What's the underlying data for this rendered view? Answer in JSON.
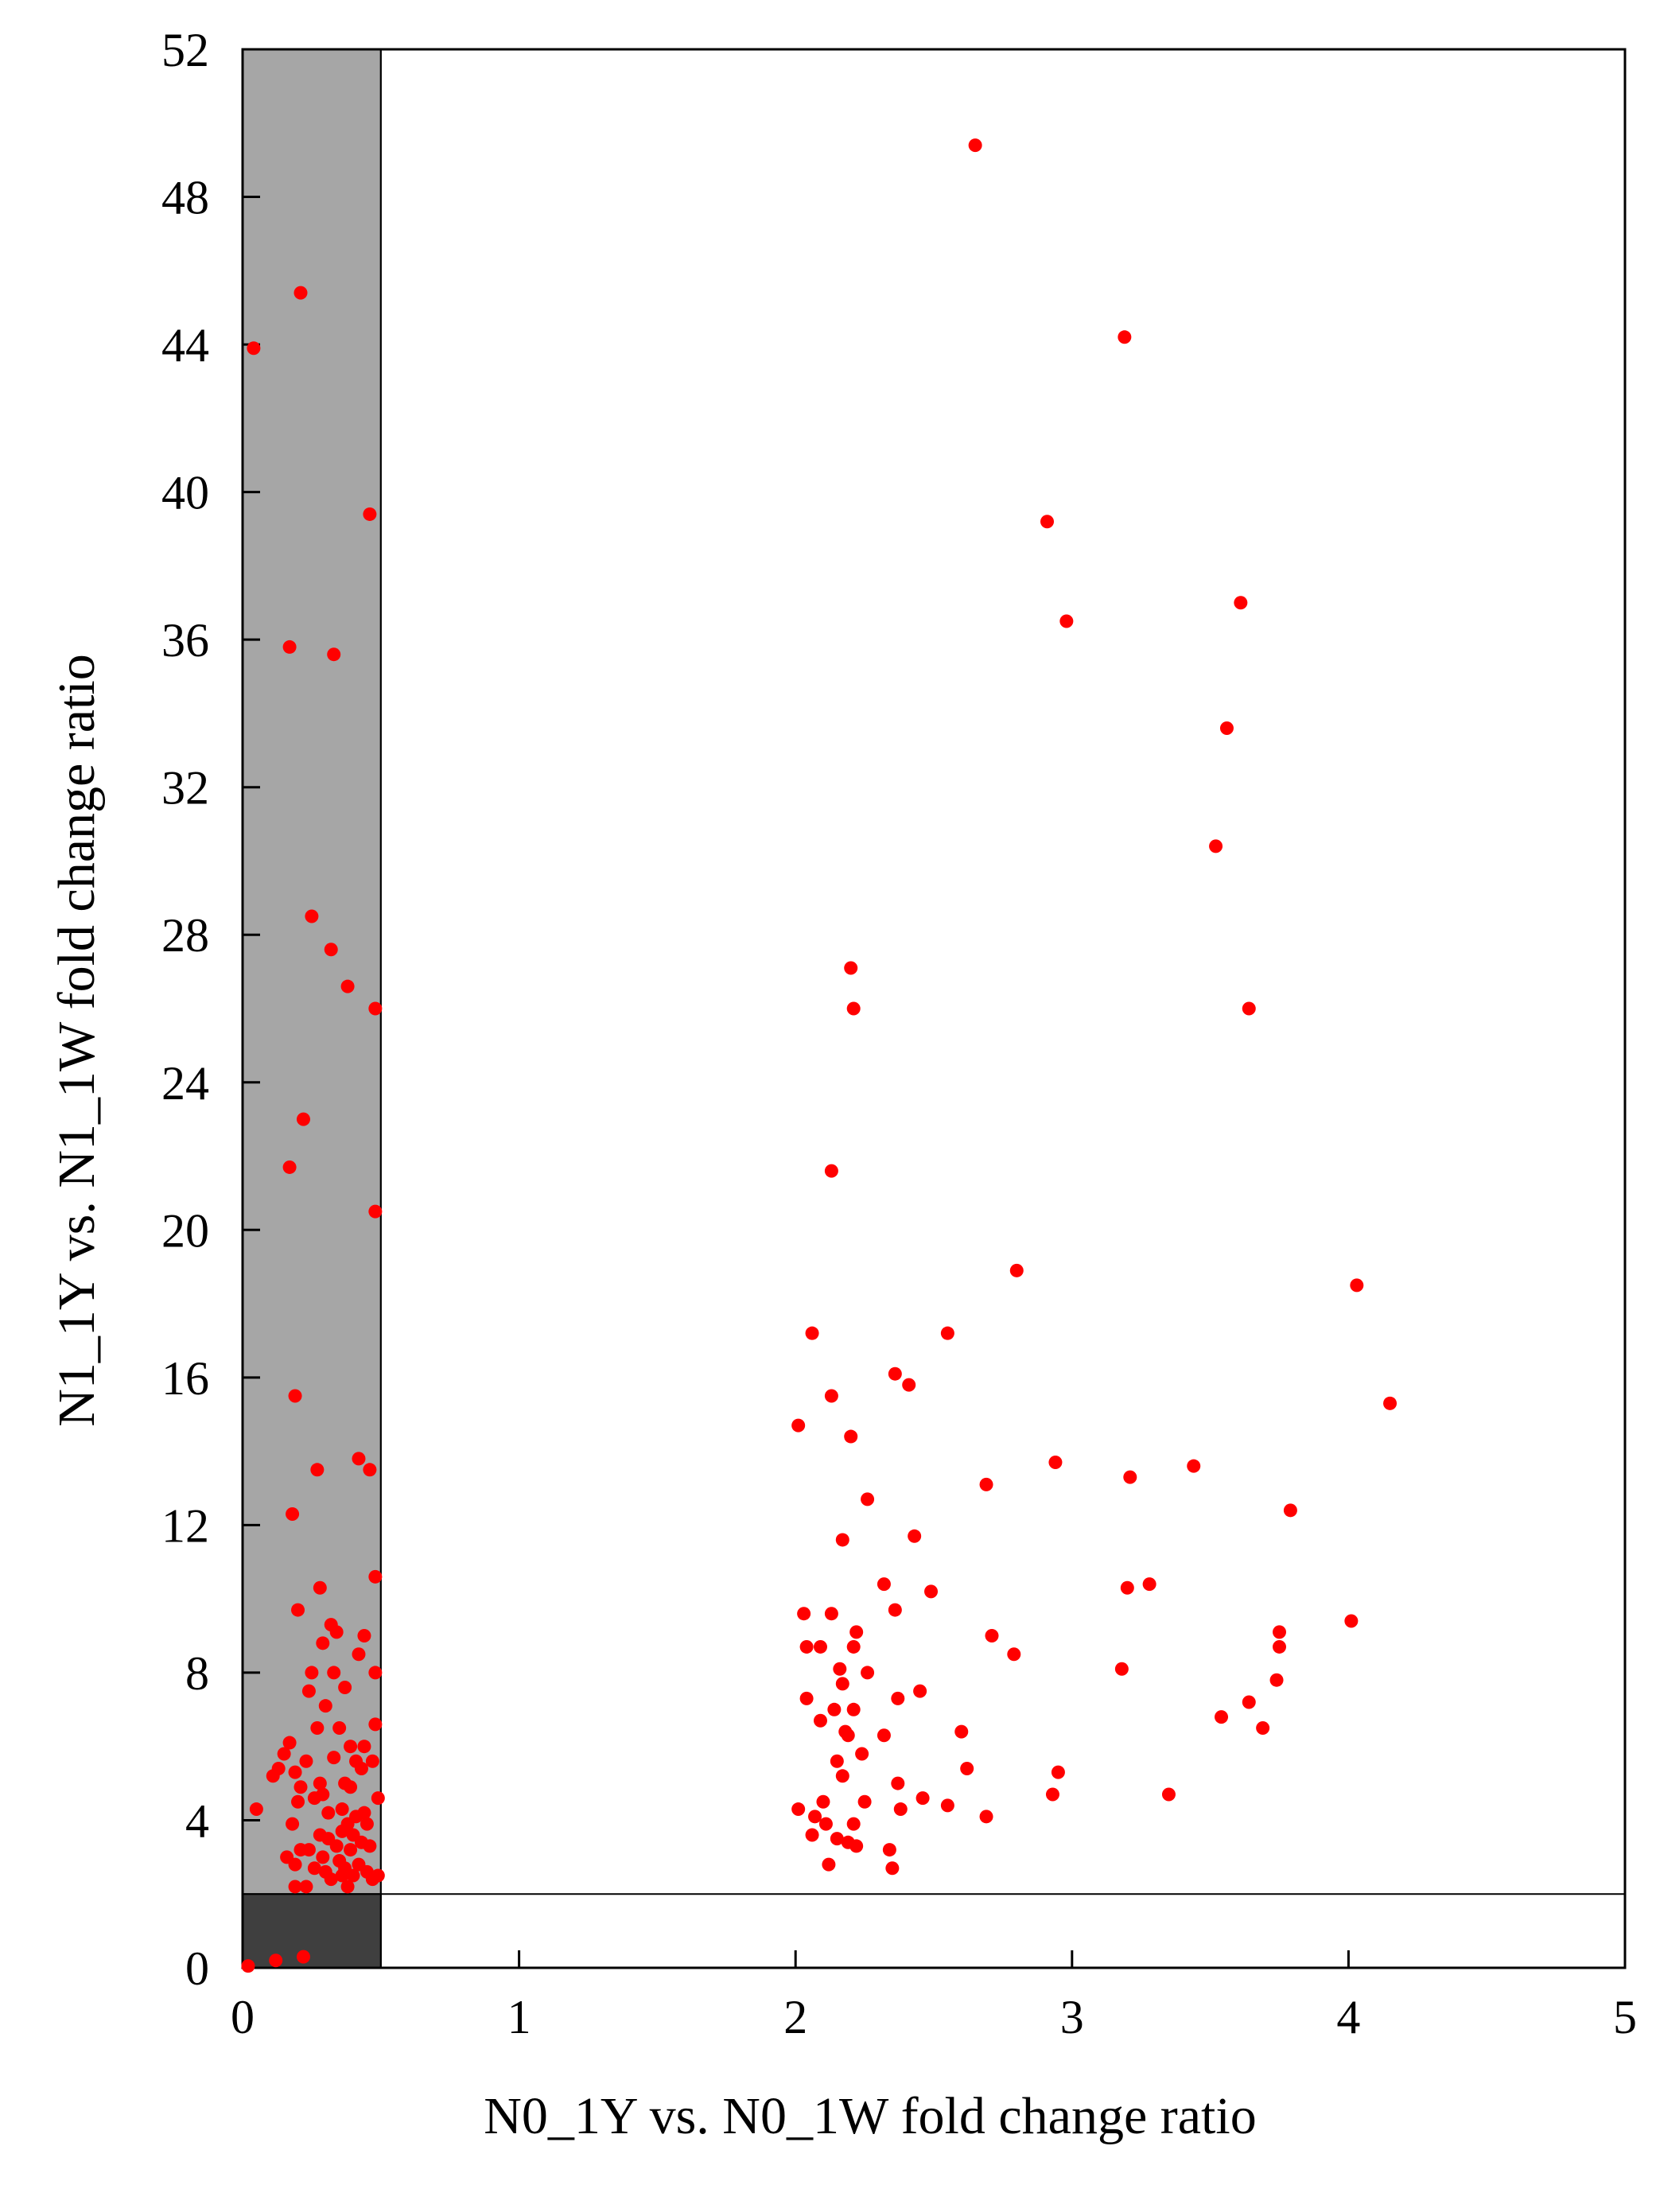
{
  "chart_data": {
    "type": "scatter",
    "title": "",
    "xlabel": "N0_1Y vs. N0_1W  fold change ratio",
    "ylabel": "N1_1Y vs. N1_1W fold change ratio",
    "xlim": [
      0,
      5
    ],
    "ylim": [
      0,
      52
    ],
    "x_ticks": [
      0,
      1,
      2,
      3,
      4,
      5
    ],
    "y_ticks": [
      0,
      4,
      8,
      12,
      16,
      20,
      24,
      28,
      32,
      36,
      40,
      44,
      48,
      52
    ],
    "x_tick_labels": [
      "0",
      "1",
      "2",
      "3",
      "4",
      "5"
    ],
    "y_tick_labels": [
      "0",
      "4",
      "8",
      "12",
      "16",
      "20",
      "24",
      "28",
      "32",
      "36",
      "40",
      "44",
      "48",
      "52"
    ],
    "grid": false,
    "legend": "none",
    "colors": {
      "points": "#ff0000",
      "region_light": "#a6a6a6",
      "region_dark": "#3f3f3f",
      "axis": "#000000"
    },
    "shaded_regions": [
      {
        "name": "x below 0.5",
        "x": [
          0,
          0.5
        ],
        "y": [
          0,
          52
        ],
        "color": "#a6a6a6"
      },
      {
        "name": "x below 0.5 and y below 2",
        "x": [
          0,
          0.5
        ],
        "y": [
          0,
          2
        ],
        "color": "#3f3f3f"
      }
    ],
    "reference_lines": [
      {
        "orientation": "horizontal",
        "value": 2
      },
      {
        "orientation": "vertical",
        "value": 0.5
      }
    ],
    "series": [
      {
        "points": [
          [
            0.02,
            0.05
          ],
          [
            0.04,
            43.9
          ],
          [
            0.05,
            4.3
          ],
          [
            0.11,
            5.2
          ],
          [
            0.12,
            0.2
          ],
          [
            0.13,
            5.4
          ],
          [
            0.15,
            5.8
          ],
          [
            0.16,
            3.0
          ],
          [
            0.17,
            21.7
          ],
          [
            0.17,
            35.8
          ],
          [
            0.17,
            6.1
          ],
          [
            0.18,
            3.9
          ],
          [
            0.18,
            12.3
          ],
          [
            0.19,
            2.8
          ],
          [
            0.19,
            5.3
          ],
          [
            0.19,
            15.5
          ],
          [
            0.19,
            2.2
          ],
          [
            0.2,
            9.7
          ],
          [
            0.2,
            4.5
          ],
          [
            0.21,
            45.4
          ],
          [
            0.21,
            4.9
          ],
          [
            0.21,
            3.2
          ],
          [
            0.22,
            23.0
          ],
          [
            0.22,
            0.3
          ],
          [
            0.23,
            5.6
          ],
          [
            0.23,
            2.2
          ],
          [
            0.24,
            7.5
          ],
          [
            0.24,
            3.2
          ],
          [
            0.25,
            28.5
          ],
          [
            0.25,
            8.0
          ],
          [
            0.26,
            4.6
          ],
          [
            0.26,
            2.7
          ],
          [
            0.27,
            13.5
          ],
          [
            0.27,
            6.5
          ],
          [
            0.28,
            10.3
          ],
          [
            0.28,
            3.6
          ],
          [
            0.28,
            5.0
          ],
          [
            0.29,
            8.8
          ],
          [
            0.29,
            4.7
          ],
          [
            0.29,
            3.0
          ],
          [
            0.3,
            7.1
          ],
          [
            0.3,
            2.6
          ],
          [
            0.31,
            4.2
          ],
          [
            0.31,
            3.5
          ],
          [
            0.32,
            9.3
          ],
          [
            0.32,
            27.6
          ],
          [
            0.32,
            2.4
          ],
          [
            0.33,
            35.6
          ],
          [
            0.33,
            5.7
          ],
          [
            0.33,
            8.0
          ],
          [
            0.34,
            3.3
          ],
          [
            0.34,
            9.1
          ],
          [
            0.35,
            2.9
          ],
          [
            0.35,
            6.5
          ],
          [
            0.36,
            4.3
          ],
          [
            0.36,
            3.7
          ],
          [
            0.36,
            2.5
          ],
          [
            0.37,
            7.6
          ],
          [
            0.37,
            5.0
          ],
          [
            0.37,
            2.7
          ],
          [
            0.38,
            26.6
          ],
          [
            0.38,
            3.9
          ],
          [
            0.38,
            2.2
          ],
          [
            0.39,
            6.0
          ],
          [
            0.39,
            3.2
          ],
          [
            0.39,
            4.9
          ],
          [
            0.4,
            2.5
          ],
          [
            0.4,
            3.6
          ],
          [
            0.41,
            5.6
          ],
          [
            0.41,
            4.1
          ],
          [
            0.42,
            13.8
          ],
          [
            0.42,
            8.5
          ],
          [
            0.42,
            2.8
          ],
          [
            0.43,
            3.4
          ],
          [
            0.43,
            5.4
          ],
          [
            0.44,
            9.0
          ],
          [
            0.44,
            6.0
          ],
          [
            0.44,
            4.2
          ],
          [
            0.45,
            2.6
          ],
          [
            0.45,
            3.9
          ],
          [
            0.46,
            13.5
          ],
          [
            0.46,
            39.4
          ],
          [
            0.46,
            3.3
          ],
          [
            0.47,
            5.6
          ],
          [
            0.47,
            2.4
          ],
          [
            0.48,
            26.0
          ],
          [
            0.48,
            20.5
          ],
          [
            0.48,
            10.6
          ],
          [
            0.48,
            8.0
          ],
          [
            0.48,
            6.6
          ],
          [
            0.49,
            4.6
          ],
          [
            0.49,
            2.5
          ],
          [
            2.01,
            14.7
          ],
          [
            2.01,
            4.3
          ],
          [
            2.03,
            9.6
          ],
          [
            2.04,
            8.7
          ],
          [
            2.04,
            7.3
          ],
          [
            2.06,
            17.2
          ],
          [
            2.06,
            3.6
          ],
          [
            2.07,
            4.1
          ],
          [
            2.09,
            8.7
          ],
          [
            2.09,
            6.7
          ],
          [
            2.1,
            4.5
          ],
          [
            2.11,
            3.9
          ],
          [
            2.12,
            2.8
          ],
          [
            2.13,
            21.6
          ],
          [
            2.13,
            15.5
          ],
          [
            2.13,
            9.6
          ],
          [
            2.14,
            7.0
          ],
          [
            2.15,
            5.6
          ],
          [
            2.15,
            3.5
          ],
          [
            2.16,
            8.1
          ],
          [
            2.17,
            11.6
          ],
          [
            2.17,
            7.7
          ],
          [
            2.17,
            5.2
          ],
          [
            2.18,
            6.4
          ],
          [
            2.19,
            6.3
          ],
          [
            2.19,
            3.4
          ],
          [
            2.2,
            27.1
          ],
          [
            2.2,
            14.4
          ],
          [
            2.21,
            26.0
          ],
          [
            2.21,
            8.7
          ],
          [
            2.21,
            7.0
          ],
          [
            2.21,
            3.9
          ],
          [
            2.22,
            9.1
          ],
          [
            2.22,
            3.3
          ],
          [
            2.24,
            5.8
          ],
          [
            2.25,
            4.5
          ],
          [
            2.26,
            12.7
          ],
          [
            2.26,
            8.0
          ],
          [
            2.32,
            10.4
          ],
          [
            2.32,
            6.3
          ],
          [
            2.34,
            3.2
          ],
          [
            2.35,
            2.7
          ],
          [
            2.36,
            16.1
          ],
          [
            2.36,
            9.7
          ],
          [
            2.37,
            7.3
          ],
          [
            2.37,
            5.0
          ],
          [
            2.38,
            4.3
          ],
          [
            2.41,
            15.8
          ],
          [
            2.43,
            11.7
          ],
          [
            2.45,
            7.5
          ],
          [
            2.46,
            4.6
          ],
          [
            2.49,
            10.2
          ],
          [
            2.55,
            17.2
          ],
          [
            2.55,
            4.4
          ],
          [
            2.6,
            6.4
          ],
          [
            2.62,
            5.4
          ],
          [
            2.65,
            49.4
          ],
          [
            2.69,
            13.1
          ],
          [
            2.69,
            4.1
          ],
          [
            2.71,
            9.0
          ],
          [
            2.79,
            8.5
          ],
          [
            2.8,
            18.9
          ],
          [
            2.91,
            39.2
          ],
          [
            2.93,
            4.7
          ],
          [
            2.94,
            13.7
          ],
          [
            2.95,
            5.3
          ],
          [
            2.98,
            36.5
          ],
          [
            3.18,
            8.1
          ],
          [
            3.19,
            44.2
          ],
          [
            3.2,
            10.3
          ],
          [
            3.21,
            13.3
          ],
          [
            3.28,
            10.4
          ],
          [
            3.35,
            4.7
          ],
          [
            3.44,
            13.6
          ],
          [
            3.52,
            30.4
          ],
          [
            3.54,
            6.8
          ],
          [
            3.56,
            33.6
          ],
          [
            3.61,
            37.0
          ],
          [
            3.64,
            26.0
          ],
          [
            3.64,
            7.2
          ],
          [
            3.69,
            6.5
          ],
          [
            3.74,
            7.8
          ],
          [
            3.75,
            9.1
          ],
          [
            3.75,
            8.7
          ],
          [
            3.79,
            12.4
          ],
          [
            4.01,
            9.4
          ],
          [
            4.03,
            18.5
          ],
          [
            4.15,
            15.3
          ]
        ]
      }
    ]
  }
}
